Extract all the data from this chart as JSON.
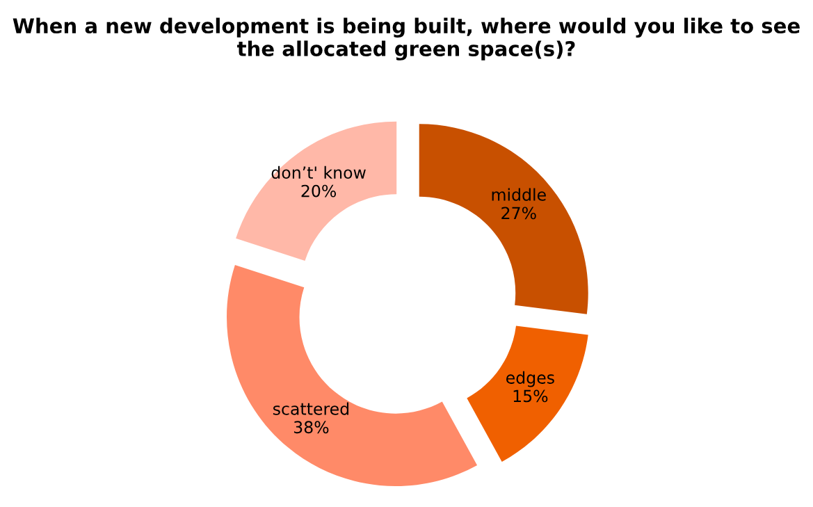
{
  "chart_data": {
    "type": "donut",
    "title": "When a new development is being built, where would you like to see the allocated green space(s)?",
    "categories": [
      "middle",
      "edges",
      "scattered",
      "don’t' know"
    ],
    "values": [
      27,
      15,
      38,
      20
    ],
    "value_labels": [
      "27%",
      "15%",
      "38%",
      "20%"
    ],
    "colors": [
      "#c85000",
      "#f06000",
      "#ff8a68",
      "#ffb8a8"
    ]
  }
}
